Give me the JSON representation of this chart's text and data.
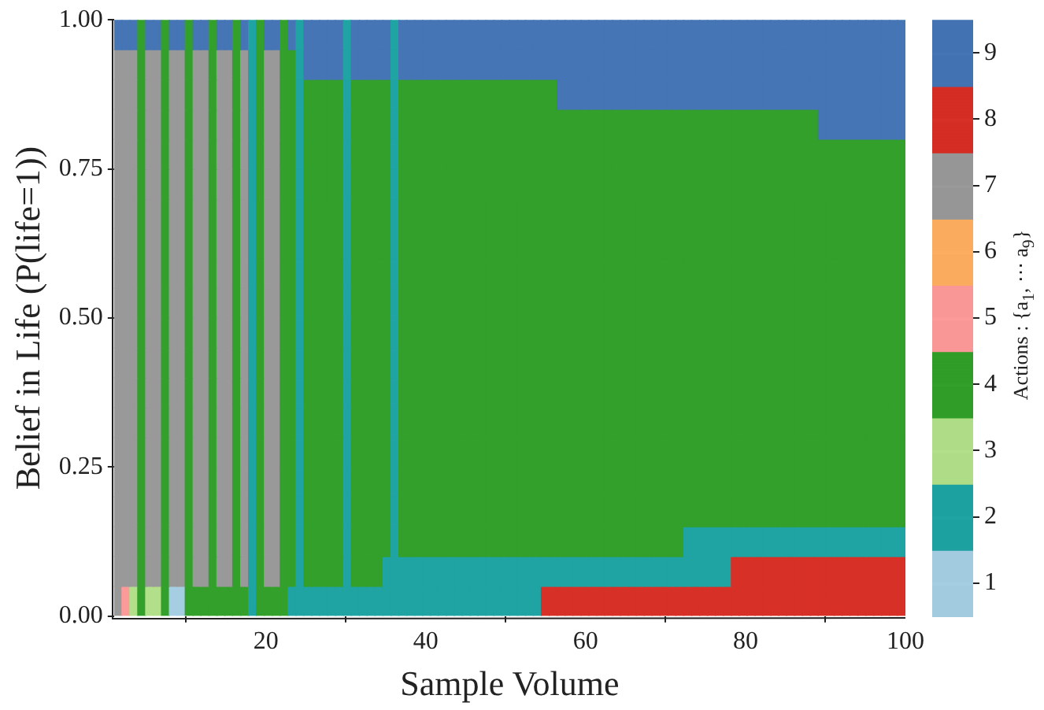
{
  "chart_data": {
    "type": "heatmap",
    "xlabel": "Sample Volume",
    "ylabel": "Belief in Life (P(life=1))",
    "clabel": "Actions : {a$_{1}$, ⋯ a$_{9}$}",
    "xlim": [
      1,
      100
    ],
    "ylim": [
      0,
      1
    ],
    "xticks": [
      20,
      40,
      60,
      80,
      100
    ],
    "yticks": [
      {
        "value": 0,
        "label": "0.00"
      },
      {
        "value": 0.25,
        "label": "0.25"
      },
      {
        "value": 0.5,
        "label": "0.50"
      },
      {
        "value": 0.75,
        "label": "0.75"
      },
      {
        "value": 1,
        "label": "1.00"
      }
    ],
    "clim": [
      0.5,
      9.5
    ],
    "cticks": [
      1,
      2,
      3,
      4,
      5,
      6,
      7,
      8,
      9
    ],
    "colors": [
      "#a6cee3",
      "#1fa3a3",
      "#b2df8a",
      "#33a02c",
      "#fb9a99",
      "#fdae61",
      "#999999",
      "#d73027",
      "#4575b4"
    ],
    "cells": [
      [
        9,
        9,
        9,
        4,
        9,
        9,
        4,
        9,
        9,
        4,
        9,
        9,
        4,
        9,
        9,
        4,
        9,
        2,
        4,
        9,
        9,
        4,
        9,
        2,
        9,
        9,
        9,
        9,
        9,
        2,
        9,
        9,
        9,
        9,
        9,
        2,
        9,
        9,
        9,
        9,
        9,
        9,
        9,
        9,
        9,
        9,
        9,
        9,
        9,
        9,
        9,
        9,
        9,
        9,
        9,
        9,
        9,
        9,
        9,
        9,
        9,
        9,
        9,
        9,
        9,
        9,
        9,
        9,
        9,
        9,
        9,
        9,
        9,
        9,
        9,
        9,
        9,
        9,
        9,
        9,
        9,
        9,
        9,
        9,
        9,
        9,
        9,
        9,
        9,
        9,
        9,
        9,
        9,
        9,
        9,
        9,
        9,
        9,
        9,
        9
      ],
      [
        7,
        7,
        7,
        4,
        7,
        7,
        4,
        7,
        7,
        4,
        7,
        7,
        4,
        7,
        7,
        4,
        7,
        2,
        4,
        7,
        7,
        4,
        4,
        2,
        9,
        9,
        9,
        9,
        9,
        2,
        9,
        9,
        9,
        9,
        9,
        2,
        9,
        9,
        9,
        9,
        9,
        9,
        9,
        9,
        9,
        9,
        9,
        9,
        9,
        9,
        9,
        9,
        9,
        9,
        9,
        9,
        9,
        9,
        9,
        9,
        9,
        9,
        9,
        9,
        9,
        9,
        9,
        9,
        9,
        9,
        9,
        9,
        9,
        9,
        9,
        9,
        9,
        9,
        9,
        9,
        9,
        9,
        9,
        9,
        9,
        9,
        9,
        9,
        9,
        9,
        9,
        9,
        9,
        9,
        9,
        9,
        9,
        9,
        9,
        9
      ],
      [
        7,
        7,
        7,
        4,
        7,
        7,
        4,
        7,
        7,
        4,
        7,
        7,
        4,
        7,
        7,
        4,
        7,
        2,
        4,
        7,
        7,
        4,
        4,
        2,
        4,
        4,
        4,
        4,
        4,
        2,
        4,
        4,
        4,
        4,
        4,
        2,
        4,
        4,
        4,
        4,
        4,
        4,
        4,
        4,
        4,
        4,
        4,
        4,
        4,
        4,
        4,
        4,
        4,
        4,
        4,
        4,
        9,
        9,
        9,
        9,
        9,
        9,
        9,
        9,
        9,
        9,
        9,
        9,
        9,
        9,
        9,
        9,
        9,
        9,
        9,
        9,
        9,
        9,
        9,
        9,
        9,
        9,
        9,
        9,
        9,
        9,
        9,
        9,
        9,
        9,
        9,
        9,
        9,
        9,
        9,
        9,
        9,
        9,
        9,
        9
      ],
      [
        7,
        7,
        7,
        4,
        7,
        7,
        4,
        7,
        7,
        4,
        7,
        7,
        4,
        7,
        7,
        4,
        7,
        2,
        4,
        7,
        7,
        4,
        4,
        2,
        4,
        4,
        4,
        4,
        4,
        2,
        4,
        4,
        4,
        4,
        4,
        2,
        4,
        4,
        4,
        4,
        4,
        4,
        4,
        4,
        4,
        4,
        4,
        4,
        4,
        4,
        4,
        4,
        4,
        4,
        4,
        4,
        4,
        4,
        4,
        4,
        4,
        4,
        4,
        4,
        4,
        4,
        4,
        4,
        4,
        4,
        4,
        4,
        4,
        4,
        4,
        4,
        4,
        4,
        4,
        4,
        4,
        4,
        4,
        4,
        4,
        4,
        4,
        4,
        4,
        9,
        9,
        9,
        9,
        9,
        9,
        9,
        9,
        9,
        9,
        9
      ],
      [
        7,
        7,
        7,
        4,
        7,
        7,
        4,
        7,
        7,
        4,
        7,
        7,
        4,
        7,
        7,
        4,
        7,
        2,
        4,
        7,
        7,
        4,
        4,
        2,
        4,
        4,
        4,
        4,
        4,
        2,
        4,
        4,
        4,
        4,
        4,
        2,
        4,
        4,
        4,
        4,
        4,
        4,
        4,
        4,
        4,
        4,
        4,
        4,
        4,
        4,
        4,
        4,
        4,
        4,
        4,
        4,
        4,
        4,
        4,
        4,
        4,
        4,
        4,
        4,
        4,
        4,
        4,
        4,
        4,
        4,
        4,
        4,
        4,
        4,
        4,
        4,
        4,
        4,
        4,
        4,
        4,
        4,
        4,
        4,
        4,
        4,
        4,
        4,
        4,
        4,
        4,
        4,
        4,
        4,
        4,
        4,
        4,
        4,
        4,
        4
      ],
      [
        7,
        7,
        7,
        4,
        7,
        7,
        4,
        7,
        7,
        4,
        7,
        7,
        4,
        7,
        7,
        4,
        7,
        2,
        4,
        7,
        7,
        4,
        4,
        2,
        4,
        4,
        4,
        4,
        4,
        2,
        4,
        4,
        4,
        4,
        4,
        2,
        4,
        4,
        4,
        4,
        4,
        4,
        4,
        4,
        4,
        4,
        4,
        4,
        4,
        4,
        4,
        4,
        4,
        4,
        4,
        4,
        4,
        4,
        4,
        4,
        4,
        4,
        4,
        4,
        4,
        4,
        4,
        4,
        4,
        4,
        4,
        4,
        4,
        4,
        4,
        4,
        4,
        4,
        4,
        4,
        4,
        4,
        4,
        4,
        4,
        4,
        4,
        4,
        4,
        4,
        4,
        4,
        4,
        4,
        4,
        4,
        4,
        4,
        4,
        4
      ],
      [
        7,
        7,
        7,
        4,
        7,
        7,
        4,
        7,
        7,
        4,
        7,
        7,
        4,
        7,
        7,
        4,
        7,
        2,
        4,
        7,
        7,
        4,
        4,
        2,
        4,
        4,
        4,
        4,
        4,
        2,
        4,
        4,
        4,
        4,
        4,
        2,
        4,
        4,
        4,
        4,
        4,
        4,
        4,
        4,
        4,
        4,
        4,
        4,
        4,
        4,
        4,
        4,
        4,
        4,
        4,
        4,
        4,
        4,
        4,
        4,
        4,
        4,
        4,
        4,
        4,
        4,
        4,
        4,
        4,
        4,
        4,
        4,
        4,
        4,
        4,
        4,
        4,
        4,
        4,
        4,
        4,
        4,
        4,
        4,
        4,
        4,
        4,
        4,
        4,
        4,
        4,
        4,
        4,
        4,
        4,
        4,
        4,
        4,
        4,
        4
      ],
      [
        7,
        7,
        7,
        4,
        7,
        7,
        4,
        7,
        7,
        4,
        7,
        7,
        4,
        7,
        7,
        4,
        7,
        2,
        4,
        7,
        7,
        4,
        4,
        2,
        4,
        4,
        4,
        4,
        4,
        2,
        4,
        4,
        4,
        4,
        4,
        2,
        4,
        4,
        4,
        4,
        4,
        4,
        4,
        4,
        4,
        4,
        4,
        4,
        4,
        4,
        4,
        4,
        4,
        4,
        4,
        4,
        4,
        4,
        4,
        4,
        4,
        4,
        4,
        4,
        4,
        4,
        4,
        4,
        4,
        4,
        4,
        4,
        4,
        4,
        4,
        4,
        4,
        4,
        4,
        4,
        4,
        4,
        4,
        4,
        4,
        4,
        4,
        4,
        4,
        4,
        4,
        4,
        4,
        4,
        4,
        4,
        4,
        4,
        4,
        4
      ],
      [
        7,
        7,
        7,
        4,
        7,
        7,
        4,
        7,
        7,
        4,
        7,
        7,
        4,
        7,
        7,
        4,
        7,
        2,
        4,
        7,
        7,
        4,
        4,
        2,
        4,
        4,
        4,
        4,
        4,
        2,
        4,
        4,
        4,
        4,
        4,
        2,
        4,
        4,
        4,
        4,
        4,
        4,
        4,
        4,
        4,
        4,
        4,
        4,
        4,
        4,
        4,
        4,
        4,
        4,
        4,
        4,
        4,
        4,
        4,
        4,
        4,
        4,
        4,
        4,
        4,
        4,
        4,
        4,
        4,
        4,
        4,
        4,
        4,
        4,
        4,
        4,
        4,
        4,
        4,
        4,
        4,
        4,
        4,
        4,
        4,
        4,
        4,
        4,
        4,
        4,
        4,
        4,
        4,
        4,
        4,
        4,
        4,
        4,
        4,
        4
      ],
      [
        7,
        7,
        7,
        4,
        7,
        7,
        4,
        7,
        7,
        4,
        7,
        7,
        4,
        7,
        7,
        4,
        7,
        2,
        4,
        7,
        7,
        4,
        4,
        2,
        4,
        4,
        4,
        4,
        4,
        2,
        4,
        4,
        4,
        4,
        4,
        2,
        4,
        4,
        4,
        4,
        4,
        4,
        4,
        4,
        4,
        4,
        4,
        4,
        4,
        4,
        4,
        4,
        4,
        4,
        4,
        4,
        4,
        4,
        4,
        4,
        4,
        4,
        4,
        4,
        4,
        4,
        4,
        4,
        4,
        4,
        4,
        4,
        4,
        4,
        4,
        4,
        4,
        4,
        4,
        4,
        4,
        4,
        4,
        4,
        4,
        4,
        4,
        4,
        4,
        4,
        4,
        4,
        4,
        4,
        4,
        4,
        4,
        4,
        4,
        4
      ],
      [
        7,
        7,
        7,
        4,
        7,
        7,
        4,
        7,
        7,
        4,
        7,
        7,
        4,
        7,
        7,
        4,
        7,
        2,
        4,
        7,
        7,
        4,
        4,
        2,
        4,
        4,
        4,
        4,
        4,
        2,
        4,
        4,
        4,
        4,
        4,
        2,
        4,
        4,
        4,
        4,
        4,
        4,
        4,
        4,
        4,
        4,
        4,
        4,
        4,
        4,
        4,
        4,
        4,
        4,
        4,
        4,
        4,
        4,
        4,
        4,
        4,
        4,
        4,
        4,
        4,
        4,
        4,
        4,
        4,
        4,
        4,
        4,
        4,
        4,
        4,
        4,
        4,
        4,
        4,
        4,
        4,
        4,
        4,
        4,
        4,
        4,
        4,
        4,
        4,
        4,
        4,
        4,
        4,
        4,
        4,
        4,
        4,
        4,
        4,
        4
      ],
      [
        7,
        7,
        7,
        4,
        7,
        7,
        4,
        7,
        7,
        4,
        7,
        7,
        4,
        7,
        7,
        4,
        7,
        2,
        4,
        7,
        7,
        4,
        4,
        2,
        4,
        4,
        4,
        4,
        4,
        2,
        4,
        4,
        4,
        4,
        4,
        2,
        4,
        4,
        4,
        4,
        4,
        4,
        4,
        4,
        4,
        4,
        4,
        4,
        4,
        4,
        4,
        4,
        4,
        4,
        4,
        4,
        4,
        4,
        4,
        4,
        4,
        4,
        4,
        4,
        4,
        4,
        4,
        4,
        4,
        4,
        4,
        4,
        4,
        4,
        4,
        4,
        4,
        4,
        4,
        4,
        4,
        4,
        4,
        4,
        4,
        4,
        4,
        4,
        4,
        4,
        4,
        4,
        4,
        4,
        4,
        4,
        4,
        4,
        4,
        4
      ],
      [
        7,
        7,
        7,
        4,
        7,
        7,
        4,
        7,
        7,
        4,
        7,
        7,
        4,
        7,
        7,
        4,
        7,
        2,
        4,
        7,
        7,
        4,
        4,
        2,
        4,
        4,
        4,
        4,
        4,
        2,
        4,
        4,
        4,
        4,
        4,
        2,
        4,
        4,
        4,
        4,
        4,
        4,
        4,
        4,
        4,
        4,
        4,
        4,
        4,
        4,
        4,
        4,
        4,
        4,
        4,
        4,
        4,
        4,
        4,
        4,
        4,
        4,
        4,
        4,
        4,
        4,
        4,
        4,
        4,
        4,
        4,
        4,
        4,
        4,
        4,
        4,
        4,
        4,
        4,
        4,
        4,
        4,
        4,
        4,
        4,
        4,
        4,
        4,
        4,
        4,
        4,
        4,
        4,
        4,
        4,
        4,
        4,
        4,
        4,
        4
      ],
      [
        7,
        7,
        7,
        4,
        7,
        7,
        4,
        7,
        7,
        4,
        7,
        7,
        4,
        7,
        7,
        4,
        7,
        2,
        4,
        7,
        7,
        4,
        4,
        2,
        4,
        4,
        4,
        4,
        4,
        2,
        4,
        4,
        4,
        4,
        4,
        2,
        4,
        4,
        4,
        4,
        4,
        4,
        4,
        4,
        4,
        4,
        4,
        4,
        4,
        4,
        4,
        4,
        4,
        4,
        4,
        4,
        4,
        4,
        4,
        4,
        4,
        4,
        4,
        4,
        4,
        4,
        4,
        4,
        4,
        4,
        4,
        4,
        4,
        4,
        4,
        4,
        4,
        4,
        4,
        4,
        4,
        4,
        4,
        4,
        4,
        4,
        4,
        4,
        4,
        4,
        4,
        4,
        4,
        4,
        4,
        4,
        4,
        4,
        4,
        4
      ],
      [
        7,
        7,
        7,
        4,
        7,
        7,
        4,
        7,
        7,
        4,
        7,
        7,
        4,
        7,
        7,
        4,
        7,
        2,
        4,
        7,
        7,
        4,
        4,
        2,
        4,
        4,
        4,
        4,
        4,
        2,
        4,
        4,
        4,
        4,
        4,
        2,
        4,
        4,
        4,
        4,
        4,
        4,
        4,
        4,
        4,
        4,
        4,
        4,
        4,
        4,
        4,
        4,
        4,
        4,
        4,
        4,
        4,
        4,
        4,
        4,
        4,
        4,
        4,
        4,
        4,
        4,
        4,
        4,
        4,
        4,
        4,
        4,
        4,
        4,
        4,
        4,
        4,
        4,
        4,
        4,
        4,
        4,
        4,
        4,
        4,
        4,
        4,
        4,
        4,
        4,
        4,
        4,
        4,
        4,
        4,
        4,
        4,
        4,
        4,
        4
      ],
      [
        7,
        7,
        7,
        4,
        7,
        7,
        4,
        7,
        7,
        4,
        7,
        7,
        4,
        7,
        7,
        4,
        7,
        2,
        4,
        7,
        7,
        4,
        4,
        2,
        4,
        4,
        4,
        4,
        4,
        2,
        4,
        4,
        4,
        4,
        4,
        2,
        4,
        4,
        4,
        4,
        4,
        4,
        4,
        4,
        4,
        4,
        4,
        4,
        4,
        4,
        4,
        4,
        4,
        4,
        4,
        4,
        4,
        4,
        4,
        4,
        4,
        4,
        4,
        4,
        4,
        4,
        4,
        4,
        4,
        4,
        4,
        4,
        4,
        4,
        4,
        4,
        4,
        4,
        4,
        4,
        4,
        4,
        4,
        4,
        4,
        4,
        4,
        4,
        4,
        4,
        4,
        4,
        4,
        4,
        4,
        4,
        4,
        4,
        4,
        4
      ],
      [
        7,
        7,
        7,
        4,
        7,
        7,
        4,
        7,
        7,
        4,
        7,
        7,
        4,
        7,
        7,
        4,
        7,
        2,
        4,
        7,
        7,
        4,
        4,
        2,
        4,
        4,
        4,
        4,
        4,
        2,
        4,
        4,
        4,
        4,
        4,
        2,
        4,
        4,
        4,
        4,
        4,
        4,
        4,
        4,
        4,
        4,
        4,
        4,
        4,
        4,
        4,
        4,
        4,
        4,
        4,
        4,
        4,
        4,
        4,
        4,
        4,
        4,
        4,
        4,
        4,
        4,
        4,
        4,
        4,
        4,
        4,
        4,
        4,
        4,
        4,
        4,
        4,
        4,
        4,
        4,
        4,
        4,
        4,
        4,
        4,
        4,
        4,
        4,
        4,
        4,
        4,
        4,
        4,
        4,
        4,
        4,
        4,
        4,
        4,
        4
      ],
      [
        7,
        7,
        7,
        4,
        7,
        7,
        4,
        7,
        7,
        4,
        7,
        7,
        4,
        7,
        7,
        4,
        7,
        2,
        4,
        7,
        7,
        4,
        4,
        2,
        4,
        4,
        4,
        4,
        4,
        2,
        4,
        4,
        4,
        4,
        4,
        2,
        4,
        4,
        4,
        4,
        4,
        4,
        4,
        4,
        4,
        4,
        4,
        4,
        4,
        4,
        4,
        4,
        4,
        4,
        4,
        4,
        4,
        4,
        4,
        4,
        4,
        4,
        4,
        4,
        4,
        4,
        4,
        4,
        4,
        4,
        4,
        4,
        2,
        2,
        2,
        2,
        2,
        2,
        2,
        2,
        2,
        2,
        2,
        2,
        2,
        2,
        2,
        2,
        2,
        2,
        2,
        2,
        2,
        2,
        2,
        2,
        2,
        2,
        2,
        2
      ],
      [
        7,
        7,
        7,
        4,
        7,
        7,
        4,
        7,
        7,
        4,
        7,
        7,
        4,
        7,
        7,
        4,
        7,
        2,
        4,
        7,
        7,
        4,
        4,
        2,
        4,
        4,
        4,
        4,
        4,
        2,
        4,
        4,
        4,
        4,
        2,
        2,
        2,
        2,
        2,
        2,
        2,
        2,
        2,
        2,
        2,
        2,
        2,
        2,
        2,
        2,
        2,
        2,
        2,
        2,
        2,
        2,
        2,
        2,
        2,
        2,
        2,
        2,
        2,
        2,
        2,
        2,
        2,
        2,
        2,
        2,
        2,
        2,
        2,
        2,
        2,
        2,
        2,
        2,
        8,
        8,
        8,
        8,
        8,
        8,
        8,
        8,
        8,
        8,
        8,
        8,
        8,
        8,
        8,
        8,
        8,
        8,
        8,
        8,
        8,
        8
      ],
      [
        7,
        5,
        3,
        4,
        3,
        3,
        4,
        1,
        1,
        4,
        4,
        4,
        4,
        4,
        4,
        4,
        4,
        2,
        4,
        4,
        4,
        4,
        2,
        2,
        2,
        2,
        2,
        2,
        2,
        2,
        2,
        2,
        2,
        2,
        2,
        2,
        2,
        2,
        2,
        2,
        2,
        2,
        2,
        2,
        2,
        2,
        2,
        2,
        2,
        2,
        2,
        2,
        2,
        2,
        8,
        8,
        8,
        8,
        8,
        8,
        8,
        8,
        8,
        8,
        8,
        8,
        8,
        8,
        8,
        8,
        8,
        8,
        8,
        8,
        8,
        8,
        8,
        8,
        8,
        8,
        8,
        8,
        8,
        8,
        8,
        8,
        8,
        8,
        8,
        8,
        8,
        8,
        8,
        8,
        8,
        8,
        8,
        8,
        8,
        8
      ]
    ]
  }
}
